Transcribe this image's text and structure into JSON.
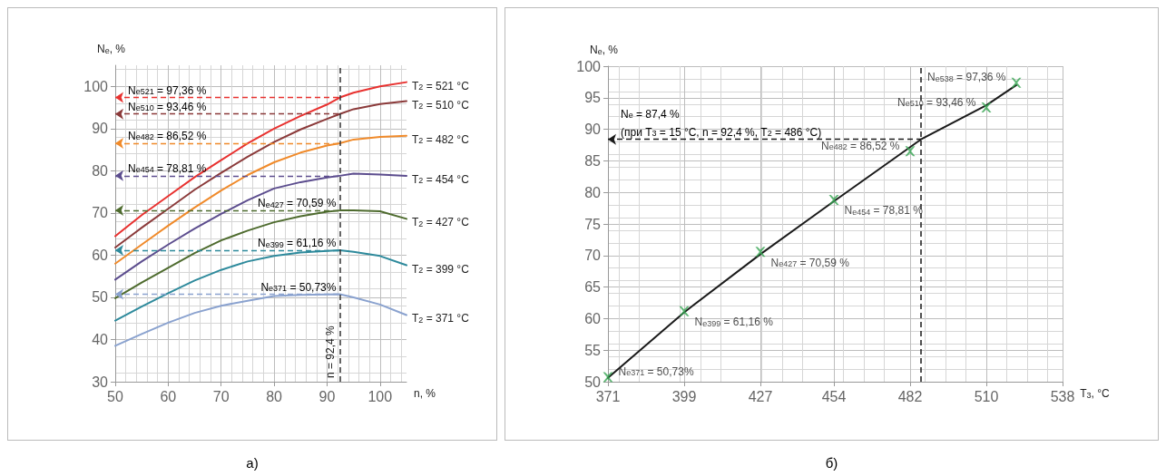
{
  "chart_data": [
    {
      "type": "line",
      "xlabel": "n, %",
      "ylabel": "N$_{e}$, %",
      "xlim": [
        50,
        105
      ],
      "xticks": [
        50,
        60,
        70,
        80,
        90,
        100
      ],
      "ylim": [
        30,
        105
      ],
      "yticks": [
        30,
        40,
        50,
        60,
        70,
        80,
        90,
        100
      ],
      "grid": true,
      "marker": "none",
      "line_style": "solid",
      "x": [
        50,
        55,
        60,
        65,
        70,
        75,
        80,
        85,
        90,
        92.4,
        95,
        100,
        105
      ],
      "series": [
        {
          "name": "T$_{2}$ = 521 °C",
          "color": "#e8312f",
          "values": [
            64.5,
            69.5,
            74,
            78.5,
            82.5,
            86.5,
            90,
            93,
            95.7,
            97.36,
            98.5,
            100,
            101
          ]
        },
        {
          "name": "T$_{2}$ = 510 °C",
          "color": "#8b3a3a",
          "values": [
            61.8,
            66.5,
            71,
            75.5,
            79.5,
            83.3,
            86.8,
            89.8,
            92.3,
            93.46,
            94.6,
            95.8,
            96.5
          ]
        },
        {
          "name": "T$_{2}$ = 482 °C",
          "color": "#f08a2a",
          "values": [
            58,
            62.5,
            67,
            71.3,
            75.3,
            79,
            82,
            84.3,
            86,
            86.52,
            87.4,
            88,
            88.3
          ]
        },
        {
          "name": "T$_{2}$ = 454 °C",
          "color": "#5c4d8e",
          "values": [
            54.2,
            58.5,
            62.5,
            66.3,
            69.8,
            73,
            75.8,
            77.3,
            78.4,
            78.81,
            79.3,
            79.1,
            78.8
          ]
        },
        {
          "name": "T$_{2}$ = 427 °C",
          "color": "#4e6b2e",
          "values": [
            49.8,
            53.5,
            57,
            60.5,
            63.5,
            65.8,
            67.8,
            69.2,
            70.3,
            70.59,
            70.6,
            70.4,
            68.6
          ]
        },
        {
          "name": "T$_{2}$ = 399 °C",
          "color": "#2e8a9c",
          "values": [
            44.5,
            47.8,
            51,
            54,
            56.5,
            58.5,
            59.8,
            60.6,
            61,
            61.16,
            60.8,
            59.8,
            57.6
          ]
        },
        {
          "name": "T$_{2}$ = 371 °C",
          "color": "#8aa2cf",
          "values": [
            38.5,
            41.3,
            44,
            46.3,
            48,
            49.2,
            50.3,
            50.6,
            50.7,
            50.73,
            50,
            48.3,
            45.8
          ]
        }
      ],
      "ref_lines": [
        {
          "axis": "x",
          "value": 92.4,
          "label": "n = 92,4 %",
          "color": "#333333",
          "line_style": "dashed"
        }
      ],
      "annotations": [
        "N$_{e521}$ = 97,36 %",
        "N$_{e510}$ = 93,46 %",
        "N$_{e482}$ = 86,52 %",
        "N$_{e454}$ = 78,81 %",
        "N$_{e427}$ = 70,59 %",
        "N$_{e399}$ = 61,16 %",
        "N$_{e371}$ = 50,73%",
        "а)"
      ]
    },
    {
      "type": "scatter",
      "xlabel": "T$_{3}$, °C",
      "ylabel": "N$_{e}$, %",
      "xlim": [
        371,
        538
      ],
      "xticks": [
        371,
        399,
        427,
        454,
        482,
        510,
        538
      ],
      "ylim": [
        50,
        100
      ],
      "yticks": [
        50,
        55,
        60,
        65,
        70,
        75,
        80,
        85,
        90,
        95,
        100
      ],
      "grid": true,
      "marker": "cross",
      "series": [
        {
          "type": "line",
          "color": "#1a1a1a",
          "marker": "none",
          "x": [
            371,
            399,
            427,
            454,
            486,
            510,
            521
          ],
          "values": [
            50.6,
            61,
            70.2,
            78.6,
            88.4,
            93.8,
            97
          ]
        },
        {
          "type": "scatter",
          "color": "#3aa655",
          "x": [
            371,
            399,
            427,
            454,
            482,
            510,
            521
          ],
          "values": [
            50.73,
            61.16,
            70.59,
            78.81,
            86.52,
            93.46,
            97.36
          ],
          "value_labels": [
            "N$_{e371}$ = 50,73%",
            "N$_{e399}$ = 61,16 %",
            "N$_{e427}$ = 70,59 %",
            "N$_{e454}$ = 78,81 %",
            "N$_{e482}$ = 86,52 %",
            "N$_{e510}$ = 93,46 %",
            "N$_{e538}$ = 97,36 %"
          ]
        }
      ],
      "ref_lines": [
        {
          "axis": "x",
          "value": 486,
          "color": "#1a1a1a",
          "line_style": "dashed"
        }
      ],
      "annotations": [
        "N$_{e}$ = 87,4 %\n(при T$_{3}$ = 15 °C, n = 92,4 %, T$_{2}$ = 486 °C)",
        "б)"
      ]
    }
  ]
}
